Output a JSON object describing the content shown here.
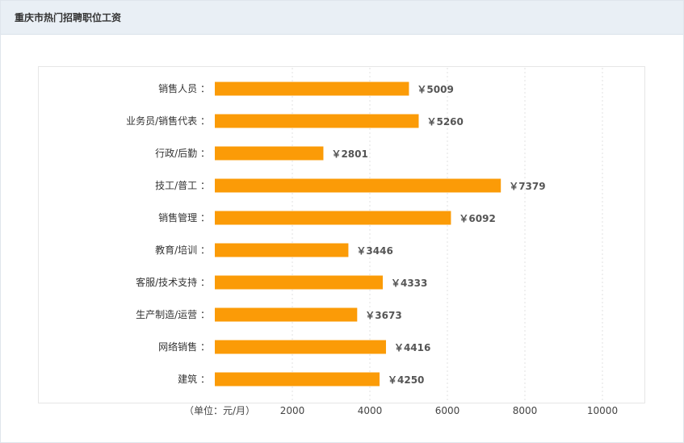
{
  "header": {
    "title": "重庆市热门招聘职位工资"
  },
  "unit_label": "（单位：元/月）",
  "chart_data": {
    "type": "bar",
    "orientation": "horizontal",
    "title": "重庆市热门招聘职位工资",
    "categories": [
      "销售人员 ：",
      "业务员/销售代表 ：",
      "行政/后勤 ：",
      "技工/普工 ：",
      "销售管理 ：",
      "教育/培训 ：",
      "客服/技术支持 ：",
      "生产制造/运营 ：",
      "网络销售 ：",
      "建筑 ："
    ],
    "values": [
      5009,
      5260,
      2801,
      7379,
      6092,
      3446,
      4333,
      3673,
      4416,
      4250
    ],
    "value_labels": [
      "￥5009",
      "￥5260",
      "￥2801",
      "￥7379",
      "￥6092",
      "￥3446",
      "￥4333",
      "￥3673",
      "￥4416",
      "￥4250"
    ],
    "x_ticks": [
      "2000",
      "4000",
      "6000",
      "8000",
      "10000"
    ],
    "xlim": [
      0,
      10000
    ],
    "xlabel": "（单位：元/月）",
    "grid": true,
    "bar_color": "#fb9b07"
  }
}
